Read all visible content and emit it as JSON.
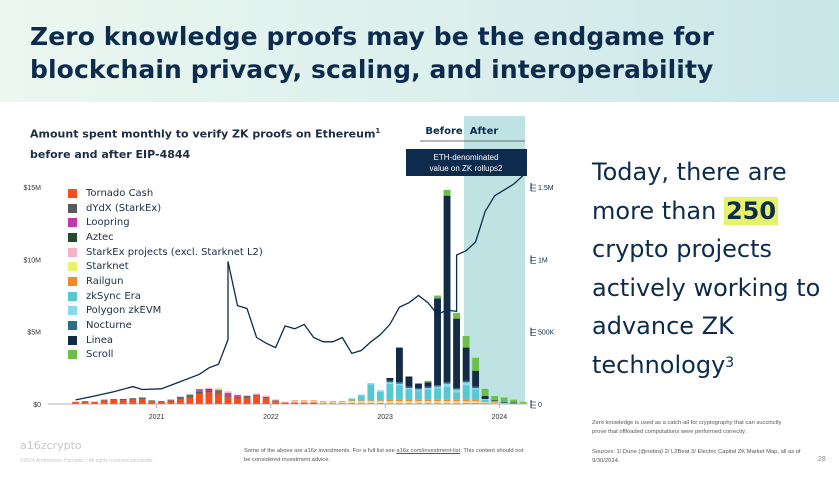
{
  "page": {
    "title": "Zero knowledge proofs may be the endgame for blockchain privacy, scaling, and interoperability",
    "side_text_pre": "Today, there are more than ",
    "side_text_highlight": "250",
    "side_text_post": " crypto projects actively working to advance ZK technology",
    "side_text_sup": "3",
    "footnote_right": "Zero knowledge is used as a catch-all for cryptography that can succinctly prove that offloaded computations were performed correctly.",
    "sources": "Sources: 1/ Dune (@nebra) 2/ L2Beat 3/ Electric Capital ZK Market Map, all as of 9/30/2024.",
    "bottom_note_1": "Some of the above are a16z investments. For a full list see ",
    "bottom_note_link": "a16z.com/investment-list",
    "bottom_note_2": ". This content should not be considered investment advice.",
    "logo": "a16zcrypto",
    "copyright": "©2024 Andreessen Horowitz. | All rights reserved worldwide.",
    "page_number": "28",
    "colors": {
      "accent": "#0d2b4c",
      "highlight": "#e6f26a",
      "after_band": "#bfe3e3"
    }
  },
  "chart_data": {
    "type": "bar",
    "title": "Amount spent monthly to verify ZK proofs on Ethereum",
    "title_sup": "1",
    "subtitle": "before and after EIP-4844",
    "before_label": "Before",
    "after_label": "After",
    "annotation": "ETH-denominated value on ZK rollups",
    "annotation_sup": "2",
    "x_ticks": [
      "2021",
      "2022",
      "2023",
      "2024"
    ],
    "y_ticks": [
      "$15M",
      "$10M",
      "$5M",
      "$0"
    ],
    "ylim": [
      0,
      15000000
    ],
    "right_axis_ticks": [
      "1.5M",
      "1M",
      "500K",
      "0"
    ],
    "right_ylim": [
      0,
      1500000
    ],
    "series": [
      {
        "name": "Tornado Cash",
        "color": "#f24e1e"
      },
      {
        "name": "dYdX (StarkEx)",
        "color": "#5a5a5a"
      },
      {
        "name": "Loopring",
        "color": "#c23aa8"
      },
      {
        "name": "Aztec",
        "color": "#1f4f2a"
      },
      {
        "name": "StarkEx projects (excl. Starknet L2)",
        "color": "#f7b2c7"
      },
      {
        "name": "Starknet",
        "color": "#e8f36b"
      },
      {
        "name": "Railgun",
        "color": "#f28a2c"
      },
      {
        "name": "zkSync Era",
        "color": "#57c8d3"
      },
      {
        "name": "Polygon zkEVM",
        "color": "#8ad7f0"
      },
      {
        "name": "Nocturne",
        "color": "#2a6e87"
      },
      {
        "name": "Linea",
        "color": "#132b45"
      },
      {
        "name": "Scroll",
        "color": "#6cbf4b"
      }
    ],
    "bars": [
      {
        "date": "2020-10",
        "values": [
          0.15,
          0,
          0,
          0,
          0,
          0,
          0,
          0,
          0,
          0,
          0,
          0
        ]
      },
      {
        "date": "2020-11",
        "values": [
          0.2,
          0,
          0,
          0,
          0,
          0,
          0,
          0,
          0,
          0,
          0,
          0
        ]
      },
      {
        "date": "2020-12",
        "values": [
          0.15,
          0,
          0,
          0,
          0,
          0,
          0,
          0,
          0,
          0,
          0,
          0
        ]
      },
      {
        "date": "2021-01",
        "values": [
          0.25,
          0.05,
          0,
          0,
          0,
          0,
          0,
          0,
          0,
          0,
          0,
          0
        ]
      },
      {
        "date": "2021-02",
        "values": [
          0.3,
          0.05,
          0,
          0,
          0,
          0,
          0,
          0,
          0,
          0,
          0,
          0
        ]
      },
      {
        "date": "2021-03",
        "values": [
          0.25,
          0.1,
          0,
          0,
          0,
          0,
          0,
          0,
          0,
          0,
          0,
          0
        ]
      },
      {
        "date": "2021-04",
        "values": [
          0.3,
          0.1,
          0,
          0,
          0,
          0,
          0,
          0,
          0,
          0,
          0,
          0
        ]
      },
      {
        "date": "2021-05",
        "values": [
          0.35,
          0.1,
          0,
          0,
          0,
          0,
          0,
          0,
          0,
          0,
          0,
          0
        ]
      },
      {
        "date": "2021-06",
        "values": [
          0.2,
          0.05,
          0,
          0,
          0,
          0,
          0,
          0,
          0,
          0,
          0,
          0
        ]
      },
      {
        "date": "2021-07",
        "values": [
          0.15,
          0.05,
          0,
          0,
          0,
          0,
          0,
          0,
          0,
          0,
          0,
          0
        ]
      },
      {
        "date": "2021-08",
        "values": [
          0.25,
          0.05,
          0,
          0,
          0,
          0,
          0,
          0,
          0,
          0,
          0,
          0
        ]
      },
      {
        "date": "2021-09",
        "values": [
          0.35,
          0.1,
          0.05,
          0,
          0,
          0,
          0,
          0,
          0,
          0,
          0,
          0
        ]
      },
      {
        "date": "2021-10",
        "values": [
          0.45,
          0.1,
          0.05,
          0.05,
          0,
          0,
          0,
          0,
          0,
          0,
          0,
          0
        ]
      },
      {
        "date": "2021-11",
        "values": [
          0.7,
          0.15,
          0.1,
          0.05,
          0.05,
          0,
          0,
          0,
          0,
          0,
          0,
          0
        ]
      },
      {
        "date": "2021-12",
        "values": [
          0.8,
          0.1,
          0.1,
          0.05,
          0.05,
          0,
          0,
          0,
          0,
          0,
          0,
          0
        ]
      },
      {
        "date": "2022-01",
        "values": [
          0.7,
          0.1,
          0.1,
          0.05,
          0.1,
          0.05,
          0,
          0,
          0,
          0,
          0,
          0
        ]
      },
      {
        "date": "2022-02",
        "values": [
          0.5,
          0.1,
          0.1,
          0.05,
          0.1,
          0.05,
          0,
          0,
          0,
          0,
          0,
          0
        ]
      },
      {
        "date": "2022-03",
        "values": [
          0.45,
          0.05,
          0.05,
          0.05,
          0.05,
          0,
          0,
          0,
          0,
          0,
          0,
          0
        ]
      },
      {
        "date": "2022-04",
        "values": [
          0.4,
          0.05,
          0.05,
          0.05,
          0.05,
          0,
          0,
          0,
          0,
          0,
          0,
          0
        ]
      },
      {
        "date": "2022-05",
        "values": [
          0.55,
          0.05,
          0.05,
          0,
          0.05,
          0.05,
          0,
          0,
          0,
          0,
          0,
          0
        ]
      },
      {
        "date": "2022-06",
        "values": [
          0.4,
          0.05,
          0.05,
          0,
          0.05,
          0.05,
          0,
          0,
          0,
          0,
          0,
          0
        ]
      },
      {
        "date": "2022-07",
        "values": [
          0.2,
          0.05,
          0,
          0,
          0.05,
          0.05,
          0,
          0,
          0,
          0,
          0,
          0
        ]
      },
      {
        "date": "2022-08",
        "values": [
          0.1,
          0,
          0,
          0,
          0.05,
          0,
          0,
          0,
          0,
          0,
          0,
          0
        ]
      },
      {
        "date": "2022-09",
        "values": [
          0.1,
          0,
          0,
          0,
          0.05,
          0.05,
          0.05,
          0,
          0,
          0,
          0,
          0
        ]
      },
      {
        "date": "2022-10",
        "values": [
          0.1,
          0,
          0,
          0,
          0.05,
          0.05,
          0.05,
          0,
          0,
          0,
          0,
          0
        ]
      },
      {
        "date": "2022-11",
        "values": [
          0.1,
          0,
          0,
          0,
          0.05,
          0.05,
          0.05,
          0,
          0,
          0,
          0,
          0
        ]
      },
      {
        "date": "2022-12",
        "values": [
          0.05,
          0,
          0,
          0,
          0.05,
          0.05,
          0.05,
          0,
          0,
          0,
          0,
          0
        ]
      },
      {
        "date": "2023-01",
        "values": [
          0.05,
          0,
          0,
          0,
          0.05,
          0.05,
          0.05,
          0,
          0,
          0,
          0,
          0
        ]
      },
      {
        "date": "2023-02",
        "values": [
          0.05,
          0,
          0,
          0,
          0.05,
          0.05,
          0.05,
          0,
          0,
          0,
          0,
          0
        ]
      },
      {
        "date": "2023-03",
        "values": [
          0.05,
          0,
          0,
          0,
          0.05,
          0.1,
          0.05,
          0.1,
          0.05,
          0,
          0,
          0
        ]
      },
      {
        "date": "2023-04",
        "values": [
          0.05,
          0,
          0,
          0,
          0.05,
          0.1,
          0.05,
          0.35,
          0.05,
          0,
          0,
          0
        ]
      },
      {
        "date": "2023-05",
        "values": [
          0.05,
          0,
          0,
          0,
          0.05,
          0.1,
          0.05,
          1.1,
          0.1,
          0,
          0,
          0
        ]
      },
      {
        "date": "2023-06",
        "values": [
          0.05,
          0,
          0,
          0,
          0.05,
          0.1,
          0.05,
          0.6,
          0.1,
          0,
          0,
          0
        ]
      },
      {
        "date": "2023-07",
        "values": [
          0.05,
          0,
          0,
          0,
          0.05,
          0.1,
          0.1,
          1.1,
          0.1,
          0.1,
          0.2,
          0
        ]
      },
      {
        "date": "2023-08",
        "values": [
          0.05,
          0,
          0,
          0,
          0.05,
          0.1,
          0.1,
          1.0,
          0.1,
          0.1,
          2.4,
          0
        ]
      },
      {
        "date": "2023-09",
        "values": [
          0.05,
          0,
          0,
          0,
          0.05,
          0.1,
          0.1,
          0.7,
          0.1,
          0.1,
          0.7,
          0
        ]
      },
      {
        "date": "2023-10",
        "values": [
          0.05,
          0,
          0,
          0,
          0.05,
          0.1,
          0.1,
          0.6,
          0.1,
          0.1,
          0.3,
          0.05
        ]
      },
      {
        "date": "2023-11",
        "values": [
          0.05,
          0,
          0,
          0,
          0.05,
          0.1,
          0.1,
          0.7,
          0.1,
          0.1,
          0.3,
          0.1
        ]
      },
      {
        "date": "2023-12",
        "values": [
          0.05,
          0,
          0,
          0,
          0.05,
          0.1,
          0.1,
          0.8,
          0.1,
          0.1,
          6.0,
          0.2
        ]
      },
      {
        "date": "2024-01",
        "values": [
          0.05,
          0,
          0,
          0,
          0.05,
          0.1,
          0.1,
          0.9,
          0.2,
          0.1,
          12.9,
          0.4
        ]
      },
      {
        "date": "2024-02",
        "values": [
          0.05,
          0,
          0,
          0,
          0.05,
          0.1,
          0.1,
          0.5,
          0.2,
          0.1,
          4.8,
          0.4
        ]
      },
      {
        "date": "2024-03",
        "values": [
          0.05,
          0,
          0,
          0,
          0.05,
          0.1,
          0.1,
          1.0,
          0.2,
          0.1,
          2.3,
          0.8
        ]
      },
      {
        "date": "2024-04",
        "values": [
          0.05,
          0,
          0,
          0,
          0.05,
          0.1,
          0.1,
          0.7,
          0.1,
          0.1,
          1.1,
          0.9
        ]
      },
      {
        "date": "2024-05",
        "values": [
          0.05,
          0,
          0,
          0,
          0.05,
          0.05,
          0.05,
          0.1,
          0.05,
          0,
          0.2,
          0.5
        ]
      },
      {
        "date": "2024-06",
        "values": [
          0,
          0,
          0,
          0,
          0.05,
          0.05,
          0.05,
          0.05,
          0,
          0,
          0.05,
          0.3
        ]
      },
      {
        "date": "2024-07",
        "values": [
          0,
          0,
          0,
          0,
          0,
          0.05,
          0,
          0.05,
          0,
          0,
          0.05,
          0.3
        ]
      },
      {
        "date": "2024-08",
        "values": [
          0,
          0,
          0,
          0,
          0,
          0.05,
          0,
          0,
          0,
          0,
          0.05,
          0.2
        ]
      },
      {
        "date": "2024-09",
        "values": [
          0,
          0,
          0,
          0,
          0,
          0.05,
          0,
          0,
          0,
          0,
          0,
          0.1
        ]
      }
    ],
    "line_series": {
      "color": "#0d2b4c",
      "points": [
        [
          "2020-10",
          0.28
        ],
        [
          "2020-12",
          0.55
        ],
        [
          "2021-02",
          0.85
        ],
        [
          "2021-04",
          1.2
        ],
        [
          "2021-05",
          1.0
        ],
        [
          "2021-07",
          1.05
        ],
        [
          "2021-09",
          1.55
        ],
        [
          "2021-11",
          2.05
        ],
        [
          "2021-12",
          2.5
        ],
        [
          "2022-01",
          2.75
        ],
        [
          "2022-02",
          4.45
        ],
        [
          "2022-02",
          9.85
        ],
        [
          "2022-03",
          6.8
        ],
        [
          "2022-04",
          6.6
        ],
        [
          "2022-05",
          4.6
        ],
        [
          "2022-06",
          4.2
        ],
        [
          "2022-07",
          3.9
        ],
        [
          "2022-08",
          5.4
        ],
        [
          "2022-09",
          5.2
        ],
        [
          "2022-10",
          5.5
        ],
        [
          "2022-11",
          4.6
        ],
        [
          "2022-12",
          4.3
        ],
        [
          "2023-01",
          4.3
        ],
        [
          "2023-02",
          4.6
        ],
        [
          "2023-03",
          3.5
        ],
        [
          "2023-04",
          3.7
        ],
        [
          "2023-05",
          4.3
        ],
        [
          "2023-06",
          4.8
        ],
        [
          "2023-07",
          5.5
        ],
        [
          "2023-08",
          6.7
        ],
        [
          "2023-09",
          7.0
        ],
        [
          "2023-10",
          7.5
        ],
        [
          "2023-11",
          7.0
        ],
        [
          "2023-12",
          6.2
        ],
        [
          "2024-01",
          6.5
        ],
        [
          "2024-02",
          6.4
        ],
        [
          "2024-02",
          10.3
        ],
        [
          "2024-03",
          10.6
        ],
        [
          "2024-04",
          11.2
        ],
        [
          "2024-05",
          13.3
        ],
        [
          "2024-06",
          14.4
        ],
        [
          "2024-07",
          14.8
        ],
        [
          "2024-08",
          15.2
        ],
        [
          "2024-09",
          15.8
        ]
      ]
    }
  }
}
